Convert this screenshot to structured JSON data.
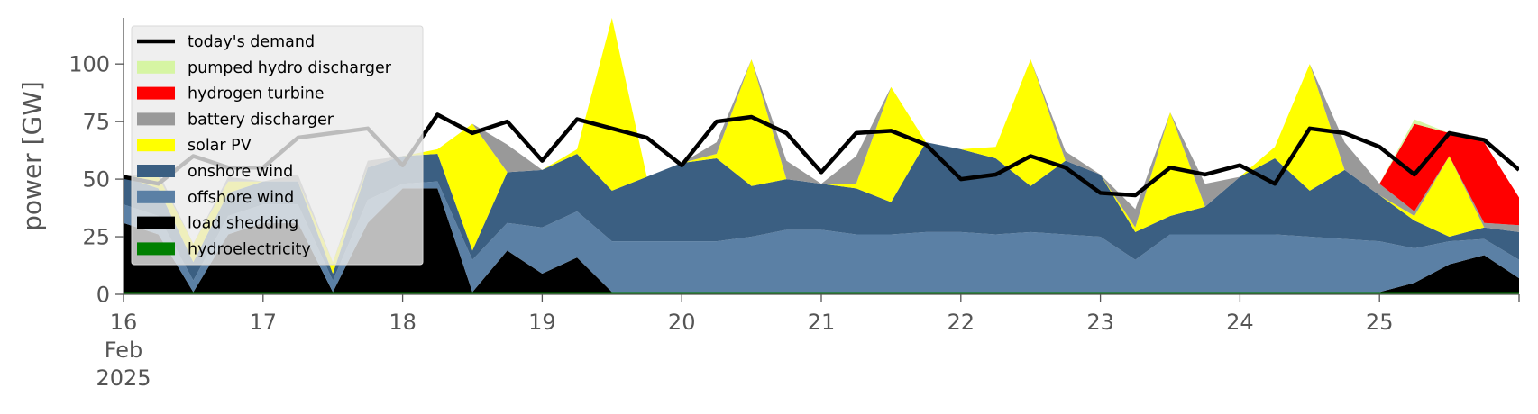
{
  "chart_data": {
    "type": "area",
    "ylabel": "power [GW]",
    "ylim": [
      0,
      120
    ],
    "yticks": [
      0,
      25,
      50,
      75,
      100
    ],
    "xlim_days": [
      16,
      26
    ],
    "x_ticks": [
      {
        "day": 16,
        "label": "16",
        "sub1": "Feb",
        "sub2": "2025"
      },
      {
        "day": 17,
        "label": "17"
      },
      {
        "day": 18,
        "label": "18"
      },
      {
        "day": 19,
        "label": "19"
      },
      {
        "day": 20,
        "label": "20"
      },
      {
        "day": 21,
        "label": "21"
      },
      {
        "day": 22,
        "label": "22"
      },
      {
        "day": 23,
        "label": "23"
      },
      {
        "day": 24,
        "label": "24"
      },
      {
        "day": 25,
        "label": "25"
      }
    ],
    "x_days": [
      16.0,
      16.25,
      16.5,
      16.75,
      17.0,
      17.25,
      17.5,
      17.75,
      18.0,
      18.25,
      18.5,
      18.75,
      19.0,
      19.25,
      19.5,
      19.75,
      20.0,
      20.25,
      20.5,
      20.75,
      21.0,
      21.25,
      21.5,
      21.75,
      22.0,
      22.25,
      22.5,
      22.75,
      23.0,
      23.25,
      23.5,
      23.75,
      24.0,
      24.25,
      24.5,
      24.75,
      25.0,
      25.25,
      25.5,
      25.75,
      26.0
    ],
    "series": [
      {
        "name": "hydroelectricity",
        "color": "#008000",
        "values": [
          1,
          1,
          1,
          1,
          1,
          1,
          1,
          1,
          1,
          1,
          1,
          1,
          1,
          1,
          1,
          1,
          1,
          1,
          1,
          1,
          1,
          1,
          1,
          1,
          1,
          1,
          1,
          1,
          1,
          1,
          1,
          1,
          1,
          1,
          1,
          1,
          1,
          1,
          1,
          1,
          1
        ]
      },
      {
        "name": "load shedding",
        "color": "#000000",
        "values": [
          30,
          25,
          0,
          25,
          30,
          30,
          0,
          30,
          45,
          45,
          0,
          18,
          8,
          15,
          0,
          0,
          0,
          0,
          0,
          0,
          0,
          0,
          0,
          0,
          0,
          0,
          0,
          0,
          0,
          0,
          0,
          0,
          0,
          0,
          0,
          0,
          0,
          4,
          12,
          16,
          6
        ]
      },
      {
        "name": "offshore wind",
        "color": "#5b80a5",
        "values": [
          8,
          8,
          5,
          8,
          8,
          8,
          5,
          10,
          2,
          3,
          14,
          12,
          20,
          20,
          22,
          22,
          22,
          22,
          24,
          27,
          27,
          25,
          25,
          26,
          26,
          25,
          26,
          25,
          24,
          14,
          25,
          25,
          25,
          25,
          24,
          23,
          22,
          15,
          10,
          7,
          8
        ]
      },
      {
        "name": "onshore wind",
        "color": "#3b5f82",
        "values": [
          12,
          12,
          8,
          10,
          10,
          10,
          3,
          14,
          12,
          12,
          4,
          22,
          25,
          25,
          22,
          28,
          34,
          36,
          22,
          22,
          20,
          20,
          14,
          39,
          36,
          33,
          20,
          32,
          27,
          12,
          8,
          12,
          25,
          33,
          20,
          30,
          20,
          12,
          2,
          5,
          12
        ]
      },
      {
        "name": "solar PV",
        "color": "#ffff00",
        "values": [
          0,
          5,
          8,
          5,
          0,
          0,
          5,
          0,
          0,
          2,
          55,
          0,
          0,
          2,
          75,
          0,
          0,
          2,
          55,
          0,
          0,
          2,
          50,
          0,
          0,
          5,
          55,
          0,
          0,
          2,
          45,
          0,
          0,
          5,
          55,
          0,
          0,
          2,
          35,
          0,
          0
        ]
      },
      {
        "name": "battery discharger",
        "color": "#999999",
        "values": [
          0,
          2,
          0,
          2,
          0,
          3,
          0,
          3,
          0,
          0,
          0,
          12,
          0,
          0,
          0,
          0,
          0,
          5,
          0,
          8,
          0,
          12,
          0,
          0,
          0,
          0,
          0,
          4,
          0,
          8,
          0,
          10,
          0,
          0,
          0,
          12,
          5,
          2,
          0,
          2,
          3
        ]
      },
      {
        "name": "hydrogen turbine",
        "color": "#ff0000",
        "values": [
          0,
          0,
          0,
          0,
          0,
          0,
          0,
          0,
          0,
          0,
          0,
          0,
          0,
          0,
          0,
          0,
          0,
          0,
          0,
          0,
          0,
          0,
          0,
          0,
          0,
          0,
          0,
          0,
          0,
          0,
          0,
          0,
          0,
          0,
          0,
          0,
          0,
          38,
          10,
          35,
          12
        ]
      },
      {
        "name": "pumped hydro discharger",
        "color": "#d6f5a3",
        "values": [
          0,
          0,
          0,
          0,
          0,
          0,
          0,
          0,
          0,
          0,
          0,
          0,
          0,
          0,
          0,
          0,
          0,
          0,
          0,
          0,
          0,
          0,
          0,
          0,
          0,
          0,
          0,
          0,
          0,
          0,
          0,
          0,
          0,
          0,
          0,
          0,
          0,
          2,
          0,
          0,
          0
        ]
      }
    ],
    "demand": {
      "name": "today's demand",
      "color": "#000000",
      "values": [
        51,
        48,
        60,
        55,
        55,
        68,
        70,
        72,
        56,
        78,
        70,
        75,
        58,
        76,
        72,
        68,
        56,
        75,
        77,
        70,
        53,
        70,
        71,
        65,
        50,
        52,
        60,
        55,
        44,
        43,
        55,
        52,
        56,
        48,
        72,
        70,
        64,
        52,
        70,
        67,
        54
      ]
    },
    "demand_dimmed_days": [
      16.0,
      18.2
    ],
    "legend": {
      "position": "top-left",
      "entries": [
        {
          "label": "today's demand",
          "color": "#000000",
          "kind": "line"
        },
        {
          "label": "pumped hydro discharger",
          "color": "#d6f5a3",
          "kind": "patch"
        },
        {
          "label": "hydrogen turbine",
          "color": "#ff0000",
          "kind": "patch"
        },
        {
          "label": "battery discharger",
          "color": "#999999",
          "kind": "patch"
        },
        {
          "label": "solar PV",
          "color": "#ffff00",
          "kind": "patch"
        },
        {
          "label": "onshore wind",
          "color": "#3b5f82",
          "kind": "patch"
        },
        {
          "label": "offshore wind",
          "color": "#5b80a5",
          "kind": "patch"
        },
        {
          "label": "load shedding",
          "color": "#000000",
          "kind": "patch"
        },
        {
          "label": "hydroelectricity",
          "color": "#008000",
          "kind": "patch"
        }
      ]
    }
  }
}
